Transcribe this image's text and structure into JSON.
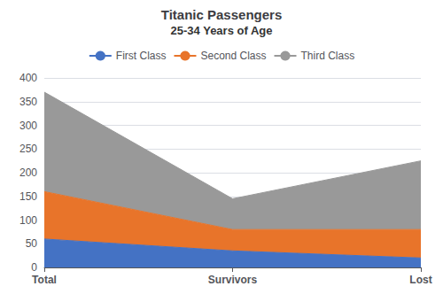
{
  "chart_data": {
    "type": "area",
    "title": "Titanic Passengers",
    "subtitle": "25-34 Years of Age",
    "categories": [
      "Total",
      "Survivors",
      "Lost"
    ],
    "series": [
      {
        "name": "First Class",
        "color": "#4472c4",
        "values": [
          60,
          35,
          20
        ]
      },
      {
        "name": "Second Class",
        "color": "#e8742a",
        "values": [
          100,
          45,
          60
        ]
      },
      {
        "name": "Third Class",
        "color": "#999999",
        "values": [
          210,
          65,
          145
        ]
      }
    ],
    "stacked": true,
    "ylim": [
      0,
      400
    ],
    "yticks": [
      0,
      50,
      100,
      150,
      200,
      250,
      300,
      350,
      400
    ],
    "grid": true,
    "legend": "top"
  }
}
